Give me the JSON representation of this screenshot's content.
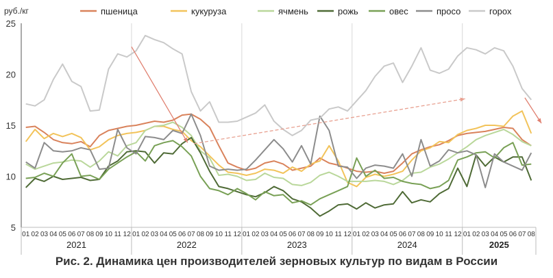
{
  "caption": "Рис. 2. Динамика цен производителей зерновых культур по видам в России",
  "chart_data": {
    "type": "line",
    "ylabel": "руб./кг",
    "ylim": [
      5,
      25
    ],
    "yticks": [
      5,
      10,
      15,
      20,
      25
    ],
    "grid": "vertical lines at year boundaries",
    "legend_position": "top",
    "x_months": [
      "01",
      "02",
      "03",
      "04",
      "05",
      "06",
      "07",
      "08",
      "09",
      "10",
      "11",
      "12",
      "01",
      "02",
      "03",
      "04",
      "05",
      "06",
      "07",
      "08",
      "09",
      "10",
      "11",
      "12",
      "01",
      "02",
      "03",
      "04",
      "05",
      "06",
      "07",
      "08",
      "09",
      "10",
      "11",
      "12",
      "01",
      "02",
      "03",
      "04",
      "05",
      "06",
      "07",
      "08",
      "09",
      "10",
      "11",
      "12",
      "01",
      "02",
      "03",
      "04",
      "05",
      "06",
      "07",
      "08"
    ],
    "years": [
      {
        "label": "2021",
        "start": 0,
        "end": 11,
        "bold": false
      },
      {
        "label": "2022",
        "start": 12,
        "end": 23,
        "bold": false
      },
      {
        "label": "2023",
        "start": 24,
        "end": 35,
        "bold": false
      },
      {
        "label": "2024",
        "start": 36,
        "end": 47,
        "bold": false
      },
      {
        "label": "2025",
        "start": 48,
        "end": 55,
        "bold": true
      }
    ],
    "series": [
      {
        "name": "пшеница",
        "color": "#d9825b",
        "values": [
          14.8,
          14.9,
          14.3,
          13.6,
          13.3,
          13.2,
          13.4,
          12.9,
          14.0,
          14.5,
          14.7,
          14.9,
          15.0,
          15.2,
          15.4,
          15.3,
          15.5,
          16.0,
          16.1,
          15.6,
          14.8,
          13.0,
          11.3,
          10.9,
          10.6,
          10.8,
          11.3,
          11.5,
          11.2,
          10.6,
          10.8,
          11.0,
          11.8,
          11.3,
          11.1,
          10.8,
          10.5,
          10.4,
          10.5,
          10.3,
          10.5,
          11.3,
          12.2,
          12.6,
          12.9,
          13.1,
          13.5,
          14.0,
          14.2,
          14.3,
          14.4,
          14.6,
          14.8,
          14.7,
          13.6,
          13.0
        ]
      },
      {
        "name": "кукуруза",
        "color": "#f2c35a",
        "values": [
          13.4,
          14.6,
          13.7,
          14.2,
          13.9,
          14.2,
          13.8,
          12.6,
          12.9,
          13.6,
          14.0,
          14.2,
          14.3,
          14.5,
          14.9,
          14.9,
          14.6,
          14.4,
          13.5,
          12.9,
          12.0,
          11.1,
          10.4,
          10.3,
          10.1,
          10.3,
          10.7,
          10.6,
          10.3,
          10.9,
          10.5,
          11.2,
          11.5,
          13.0,
          11.5,
          9.4,
          9.0,
          9.9,
          10.2,
          10.0,
          10.2,
          10.5,
          11.6,
          12.5,
          12.8,
          13.4,
          13.3,
          14.1,
          14.5,
          14.7,
          15.0,
          15.0,
          14.9,
          15.9,
          16.4,
          14.2
        ]
      },
      {
        "name": "ячмень",
        "color": "#b9d79a",
        "values": [
          11.2,
          10.7,
          11.0,
          11.3,
          11.4,
          11.6,
          11.5,
          10.9,
          11.5,
          12.4,
          12.0,
          13.0,
          13.3,
          14.5,
          14.9,
          15.0,
          15.3,
          14.8,
          14.0,
          12.5,
          11.8,
          10.1,
          10.2,
          10.0,
          9.6,
          9.7,
          10.3,
          9.9,
          9.8,
          9.2,
          9.1,
          9.4,
          10.1,
          10.4,
          10.0,
          9.5,
          9.5,
          9.5,
          9.6,
          9.5,
          9.2,
          9.6,
          10.3,
          10.4,
          10.9,
          11.2,
          11.7,
          12.3,
          12.9,
          13.6,
          14.0,
          14.3,
          14.6,
          14.1,
          13.4,
          13.0
        ]
      },
      {
        "name": "рожь",
        "color": "#4e6a35",
        "values": [
          8.9,
          9.8,
          9.5,
          10.0,
          9.7,
          9.8,
          9.9,
          9.6,
          9.7,
          11.0,
          11.5,
          12.4,
          12.5,
          12.4,
          11.3,
          12.3,
          12.2,
          13.2,
          13.8,
          12.3,
          10.5,
          9.0,
          8.8,
          8.5,
          8.2,
          8.0,
          8.4,
          9.0,
          8.6,
          7.8,
          7.5,
          6.9,
          6.1,
          6.6,
          7.2,
          7.3,
          6.8,
          7.4,
          6.9,
          7.2,
          7.3,
          8.5,
          7.4,
          7.7,
          7.5,
          8.3,
          8.8,
          10.8,
          9.0,
          12.1,
          11.0,
          11.9,
          11.4,
          11.9,
          11.9,
          9.6
        ]
      },
      {
        "name": "овес",
        "color": "#78a055",
        "values": [
          9.8,
          9.9,
          10.3,
          10.0,
          11.3,
          12.2,
          10.0,
          10.1,
          9.7,
          10.7,
          11.3,
          11.9,
          12.4,
          11.5,
          13.0,
          13.3,
          13.5,
          12.9,
          12.0,
          10.0,
          8.8,
          8.6,
          8.2,
          8.8,
          8.3,
          7.7,
          8.5,
          8.1,
          8.2,
          7.4,
          7.6,
          7.2,
          7.8,
          8.2,
          8.6,
          9.0,
          11.8,
          10.0,
          10.6,
          9.8,
          9.9,
          9.5,
          9.3,
          9.2,
          8.8,
          9.0,
          9.6,
          11.6,
          11.9,
          12.3,
          12.4,
          11.8,
          12.8,
          13.3,
          11.1,
          11.2
        ]
      },
      {
        "name": "просо",
        "color": "#8c8c8c",
        "values": [
          11.4,
          10.8,
          13.3,
          12.5,
          12.4,
          12.5,
          12.8,
          12.6,
          10.7,
          10.8,
          14.6,
          12.8,
          12.2,
          13.9,
          13.8,
          13.6,
          14.5,
          14.2,
          16.1,
          14.0,
          11.0,
          10.6,
          10.7,
          10.6,
          10.7,
          11.6,
          12.6,
          13.6,
          12.7,
          11.4,
          13.0,
          11.2,
          15.9,
          14.5,
          11.0,
          10.9,
          9.8,
          10.8,
          11.1,
          11.0,
          10.8,
          12.2,
          10.0,
          13.6,
          11.0,
          11.5,
          12.6,
          12.3,
          12.5,
          12.1,
          8.9,
          12.2,
          11.4,
          11.0,
          10.6,
          12.3
        ]
      },
      {
        "name": "горох",
        "color": "#c9c9c9",
        "values": [
          17.1,
          16.9,
          17.5,
          19.5,
          21.0,
          19.3,
          18.8,
          16.4,
          16.5,
          20.5,
          22.0,
          21.7,
          22.3,
          23.8,
          23.4,
          23.1,
          22.5,
          22.0,
          18.3,
          16.4,
          17.3,
          15.3,
          15.3,
          15.4,
          15.8,
          16.2,
          17.0,
          15.4,
          14.6,
          14.0,
          14.5,
          15.5,
          15.7,
          16.6,
          16.8,
          16.4,
          17.4,
          18.4,
          19.8,
          20.8,
          21.1,
          19.2,
          20.8,
          22.6,
          20.4,
          20.1,
          20.5,
          21.8,
          22.6,
          22.4,
          22.0,
          22.6,
          22.3,
          20.8,
          18.6,
          17.5
        ]
      }
    ],
    "arrows": [
      {
        "color": "#e08070",
        "style": "solid",
        "from": [
          11.5,
          22.7
        ],
        "to": [
          17.6,
          13.3
        ]
      },
      {
        "color": "#e8a090",
        "style": "dashed",
        "from": [
          18.3,
          13.2
        ],
        "to": [
          47.8,
          17.6
        ]
      },
      {
        "color": "#e08070",
        "style": "solid",
        "from": [
          54.3,
          17.7
        ],
        "to": [
          56.1,
          15.2
        ]
      }
    ]
  }
}
